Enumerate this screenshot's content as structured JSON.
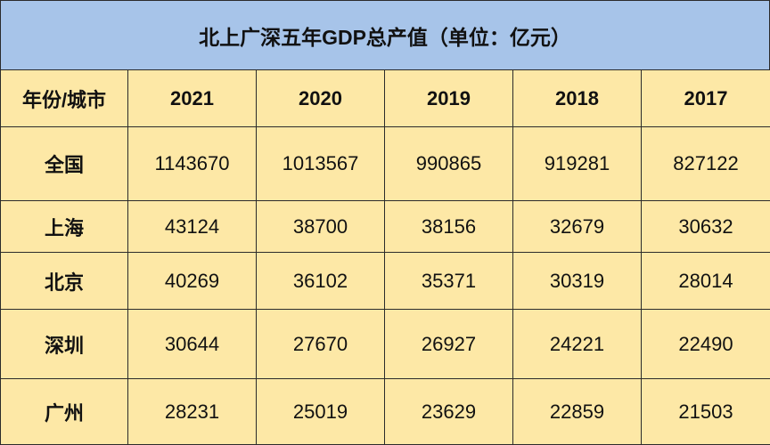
{
  "title": "北上广深五年GDP总产值（单位：亿元）",
  "table": {
    "header": [
      "年份/城市",
      "2021",
      "2020",
      "2019",
      "2018",
      "2017"
    ],
    "rows": [
      [
        "全国",
        1143670,
        1013567,
        990865,
        919281,
        827122
      ],
      [
        "上海",
        43124,
        38700,
        38156,
        32679,
        30632
      ],
      [
        "北京",
        40269,
        36102,
        35371,
        30319,
        28014
      ],
      [
        "深圳",
        30644,
        27670,
        26927,
        24221,
        22490
      ],
      [
        "广州",
        28231,
        25019,
        23629,
        22859,
        21503
      ]
    ]
  }
}
